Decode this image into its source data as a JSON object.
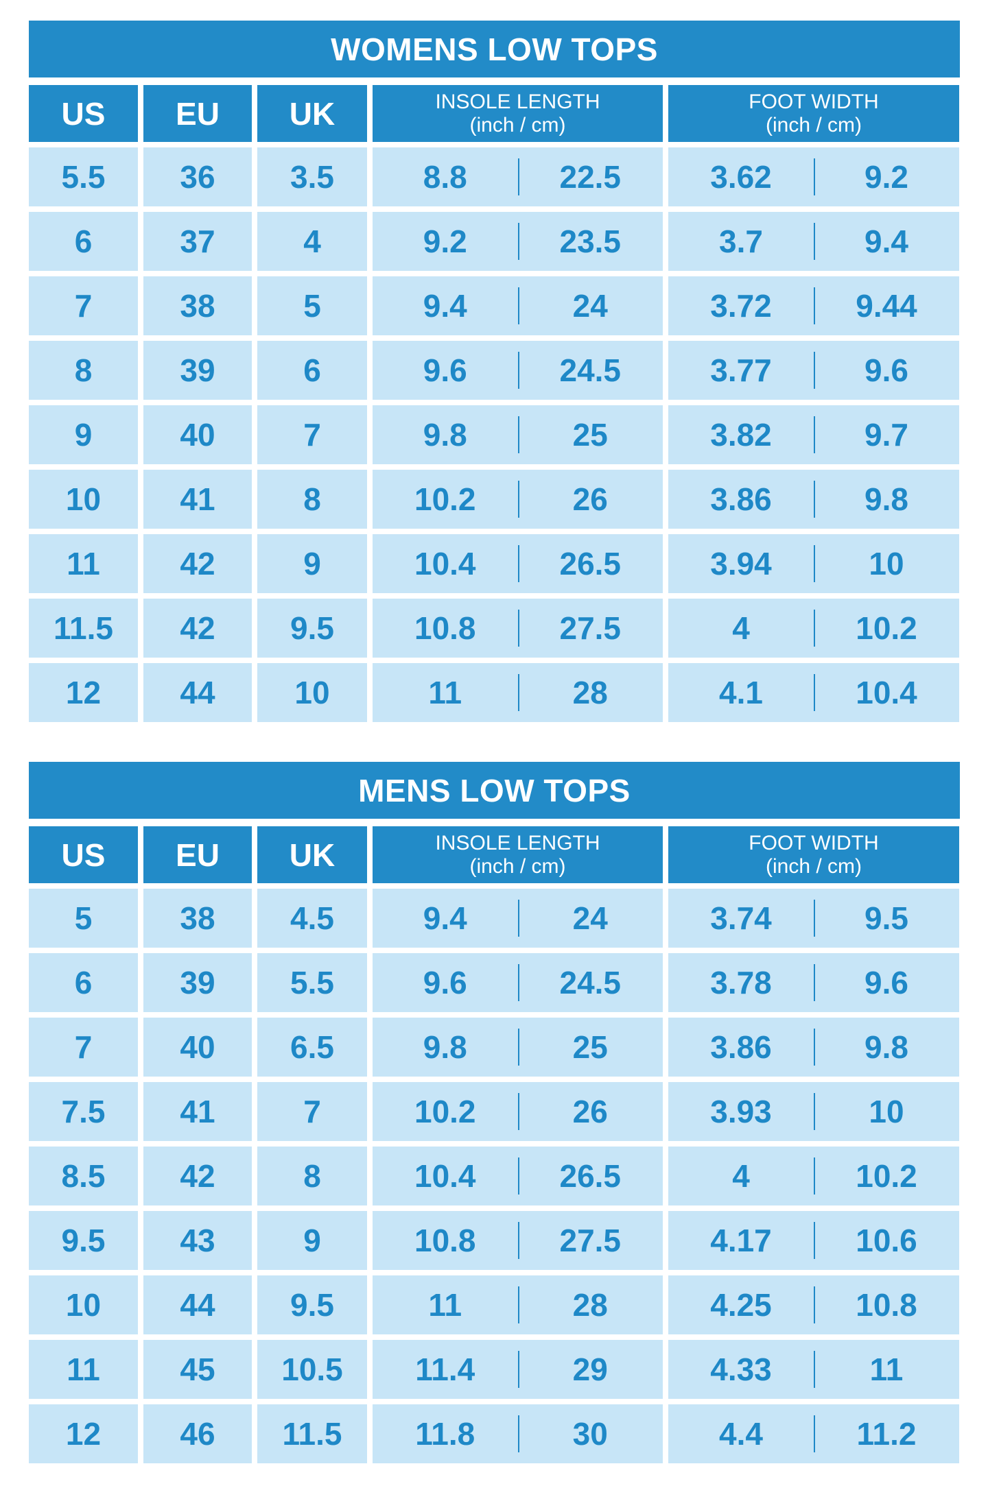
{
  "colors": {
    "header": "#228bc8",
    "cell": "#c7e5f7",
    "text": "#1e88c7"
  },
  "tables": [
    {
      "title": "WOMENS LOW TOPS",
      "headers": {
        "us": "US",
        "eu": "EU",
        "uk": "UK",
        "insole": "INSOLE LENGTH",
        "insole_unit": "(inch / cm)",
        "width": "FOOT WIDTH",
        "width_unit": "(inch / cm)"
      },
      "rows": [
        [
          "5.5",
          "36",
          "3.5",
          "8.8",
          "22.5",
          "3.62",
          "9.2"
        ],
        [
          "6",
          "37",
          "4",
          "9.2",
          "23.5",
          "3.7",
          "9.4"
        ],
        [
          "7",
          "38",
          "5",
          "9.4",
          "24",
          "3.72",
          "9.44"
        ],
        [
          "8",
          "39",
          "6",
          "9.6",
          "24.5",
          "3.77",
          "9.6"
        ],
        [
          "9",
          "40",
          "7",
          "9.8",
          "25",
          "3.82",
          "9.7"
        ],
        [
          "10",
          "41",
          "8",
          "10.2",
          "26",
          "3.86",
          "9.8"
        ],
        [
          "11",
          "42",
          "9",
          "10.4",
          "26.5",
          "3.94",
          "10"
        ],
        [
          "11.5",
          "42",
          "9.5",
          "10.8",
          "27.5",
          "4",
          "10.2"
        ],
        [
          "12",
          "44",
          "10",
          "11",
          "28",
          "4.1",
          "10.4"
        ]
      ]
    },
    {
      "title": "MENS LOW TOPS",
      "headers": {
        "us": "US",
        "eu": "EU",
        "uk": "UK",
        "insole": "INSOLE LENGTH",
        "insole_unit": "(inch / cm)",
        "width": "FOOT WIDTH",
        "width_unit": "(inch / cm)"
      },
      "rows": [
        [
          "5",
          "38",
          "4.5",
          "9.4",
          "24",
          "3.74",
          "9.5"
        ],
        [
          "6",
          "39",
          "5.5",
          "9.6",
          "24.5",
          "3.78",
          "9.6"
        ],
        [
          "7",
          "40",
          "6.5",
          "9.8",
          "25",
          "3.86",
          "9.8"
        ],
        [
          "7.5",
          "41",
          "7",
          "10.2",
          "26",
          "3.93",
          "10"
        ],
        [
          "8.5",
          "42",
          "8",
          "10.4",
          "26.5",
          "4",
          "10.2"
        ],
        [
          "9.5",
          "43",
          "9",
          "10.8",
          "27.5",
          "4.17",
          "10.6"
        ],
        [
          "10",
          "44",
          "9.5",
          "11",
          "28",
          "4.25",
          "10.8"
        ],
        [
          "11",
          "45",
          "10.5",
          "11.4",
          "29",
          "4.33",
          "11"
        ],
        [
          "12",
          "46",
          "11.5",
          "11.8",
          "30",
          "4.4",
          "11.2"
        ]
      ]
    }
  ]
}
